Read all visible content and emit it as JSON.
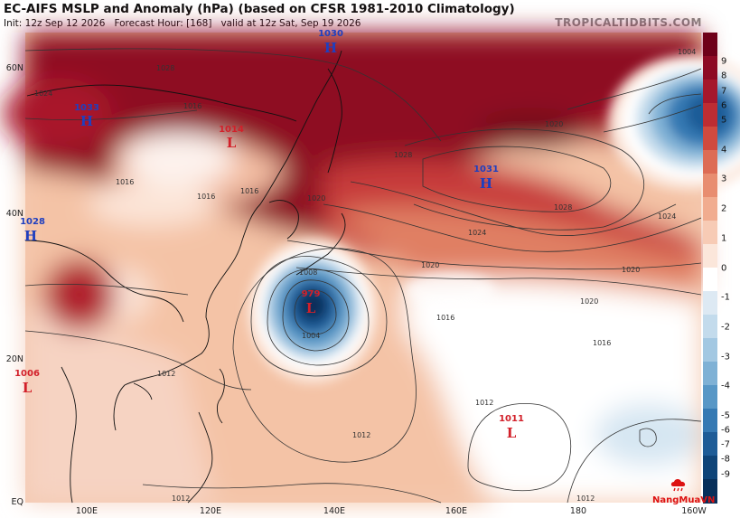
{
  "header": {
    "title": "EC-AIFS MSLP and Anomaly (hPa) (based on CFSR 1981-2010 Climatology)",
    "init": "Init: 12z Sep 12 2026",
    "forecast_hour": "Forecast Hour: [168]",
    "valid": "valid at 12z Sat, Sep 19 2026",
    "credit": "TROPICALTIDBITS.COM"
  },
  "axes": {
    "lat_labels": [
      "60N",
      "40N",
      "20N",
      "EQ"
    ],
    "lon_labels": [
      "100E",
      "120E",
      "140E",
      "160E",
      "180",
      "160W"
    ]
  },
  "colorbar": {
    "labels": [
      "9",
      "8",
      "7",
      "6",
      "5",
      "4",
      "3",
      "2",
      "1",
      "0",
      "-1",
      "-2",
      "-3",
      "-4",
      "-5",
      "-6",
      "-7",
      "-8",
      "-9"
    ],
    "colors": [
      "#6e0019",
      "#8d0a24",
      "#a5172c",
      "#bd2d33",
      "#d04a3f",
      "#dd6c55",
      "#e88d70",
      "#f1ac8f",
      "#f7cbb5",
      "#fbe6da",
      "#ffffff",
      "#dde9f3",
      "#c3dbec",
      "#a3c8e2",
      "#7fb1d5",
      "#5897c6",
      "#3579b3",
      "#1e5c97",
      "#0f4478",
      "#072f5a"
    ]
  },
  "systems": [
    {
      "type": "H",
      "value": "1030",
      "color": "#1f3fbf"
    },
    {
      "type": "H",
      "value": "1033",
      "color": "#1f3fbf"
    },
    {
      "type": "L",
      "value": "1014",
      "color": "#d2202a"
    },
    {
      "type": "H",
      "value": "1031",
      "color": "#1f3fbf"
    },
    {
      "type": "H",
      "value": "1028",
      "color": "#1f3fbf"
    },
    {
      "type": "L",
      "value": "979",
      "color": "#d2202a"
    },
    {
      "type": "L",
      "value": "1006",
      "color": "#d2202a"
    },
    {
      "type": "L",
      "value": "1011",
      "color": "#d2202a"
    }
  ],
  "isobar_labels": [
    "1028",
    "1024",
    "1016",
    "1016",
    "1016",
    "1016",
    "1020",
    "1028",
    "1028",
    "1024",
    "1020",
    "1024",
    "1020",
    "1004",
    "1020",
    "1016",
    "1020",
    "1016",
    "1008",
    "1004",
    "1012",
    "1012",
    "1012",
    "1012",
    "1012"
  ],
  "watermark": "NangMuaVN"
}
